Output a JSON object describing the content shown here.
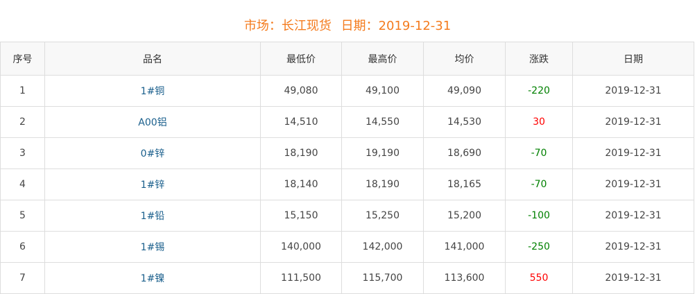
{
  "title": {
    "market_label": "市场：长江现货",
    "date_label": "日期：2019-12-31"
  },
  "colors": {
    "title": "#f47b1e",
    "name": "#1a5f8c",
    "down": "#008000",
    "up": "#ff0000"
  },
  "headers": [
    "序号",
    "品名",
    "最低价",
    "最高价",
    "均价",
    "涨跌",
    "日期"
  ],
  "rows": [
    {
      "no": "1",
      "name": "1#铜",
      "low": "49,080",
      "high": "49,100",
      "avg": "49,090",
      "change": "-220",
      "dir": "down",
      "date": "2019-12-31"
    },
    {
      "no": "2",
      "name": "A00铝",
      "low": "14,510",
      "high": "14,550",
      "avg": "14,530",
      "change": "30",
      "dir": "up",
      "date": "2019-12-31"
    },
    {
      "no": "3",
      "name": "0#锌",
      "low": "18,190",
      "high": "19,190",
      "avg": "18,690",
      "change": "-70",
      "dir": "down",
      "date": "2019-12-31"
    },
    {
      "no": "4",
      "name": "1#锌",
      "low": "18,140",
      "high": "18,190",
      "avg": "18,165",
      "change": "-70",
      "dir": "down",
      "date": "2019-12-31"
    },
    {
      "no": "5",
      "name": "1#铅",
      "low": "15,150",
      "high": "15,250",
      "avg": "15,200",
      "change": "-100",
      "dir": "down",
      "date": "2019-12-31"
    },
    {
      "no": "6",
      "name": "1#锡",
      "low": "140,000",
      "high": "142,000",
      "avg": "141,000",
      "change": "-250",
      "dir": "down",
      "date": "2019-12-31"
    },
    {
      "no": "7",
      "name": "1#镍",
      "low": "111,500",
      "high": "115,700",
      "avg": "113,600",
      "change": "550",
      "dir": "up",
      "date": "2019-12-31"
    }
  ]
}
